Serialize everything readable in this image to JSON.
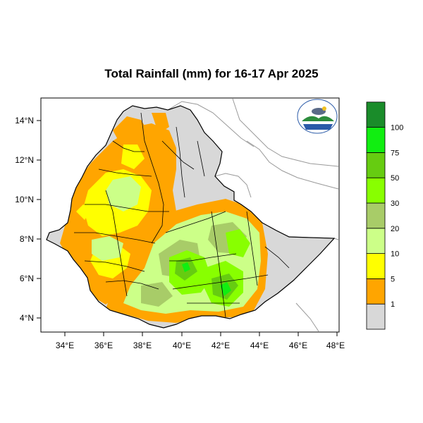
{
  "title": "Total Rainfall (mm) for 16-17 Apr 2025",
  "lat_labels": [
    "14°N",
    "12°N",
    "10°N",
    "8°N",
    "6°N",
    "4°N"
  ],
  "lon_labels": [
    "34°E",
    "36°E",
    "38°E",
    "40°E",
    "42°E",
    "44°E",
    "46°E",
    "48°E"
  ],
  "legend": {
    "labels": [
      "1",
      "5",
      "10",
      "20",
      "30",
      "50",
      "75",
      "100"
    ],
    "colors": [
      "#d8d8d8",
      "#ffa500",
      "#ffff00",
      "#ccff88",
      "#a8cc68",
      "#88ff00",
      "#66cc11",
      "#11ee11",
      "#1a8c2a"
    ]
  },
  "colors": {
    "land_dry": "#d8d8d8",
    "orange": "#ffa500",
    "yellow": "#ffff00",
    "pale_green": "#ccff88",
    "olive_green": "#a8cc68",
    "lime": "#88ff00",
    "green": "#66cc11",
    "bright_green": "#11ee11"
  },
  "logo_icon": "ethiopian-meteorology-institute-logo"
}
